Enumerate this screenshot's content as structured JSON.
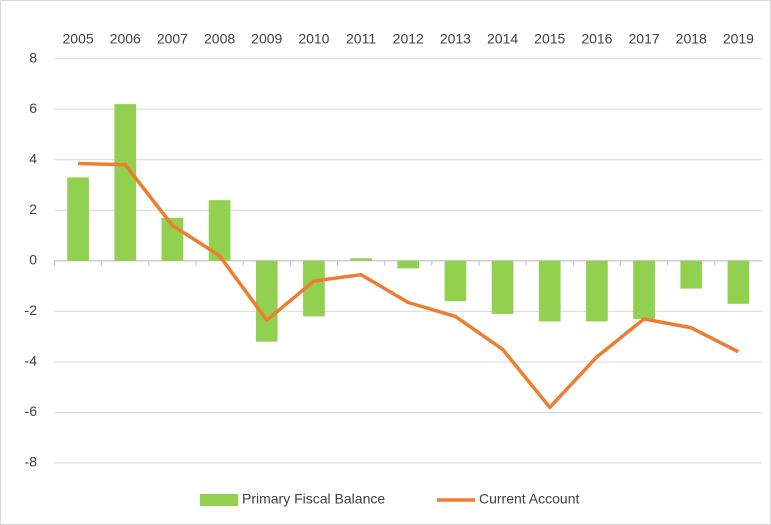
{
  "chart_data": {
    "type": "bar",
    "categories": [
      "2005",
      "2006",
      "2007",
      "2008",
      "2009",
      "2010",
      "2011",
      "2012",
      "2013",
      "2014",
      "2015",
      "2016",
      "2017",
      "2018",
      "2019"
    ],
    "series": [
      {
        "name": "Primary Fiscal Balance",
        "type": "bar",
        "color": "#92d050",
        "values": [
          3.3,
          6.2,
          1.7,
          2.4,
          -3.2,
          -2.2,
          0.1,
          -0.3,
          -1.6,
          -2.1,
          -2.4,
          -2.4,
          -2.3,
          -1.1,
          -1.7
        ]
      },
      {
        "name": "Current Account",
        "type": "line",
        "color": "#ed7d31",
        "values": [
          3.85,
          3.8,
          1.4,
          0.2,
          -2.35,
          -0.8,
          -0.55,
          -1.65,
          -2.2,
          -3.5,
          -5.8,
          -3.8,
          -2.3,
          -2.65,
          -3.6
        ]
      }
    ],
    "ylim": [
      -8,
      8
    ],
    "yticks": [
      -8,
      -6,
      -4,
      -2,
      0,
      2,
      4,
      6,
      8
    ],
    "grid": true,
    "legend": "bottom"
  }
}
